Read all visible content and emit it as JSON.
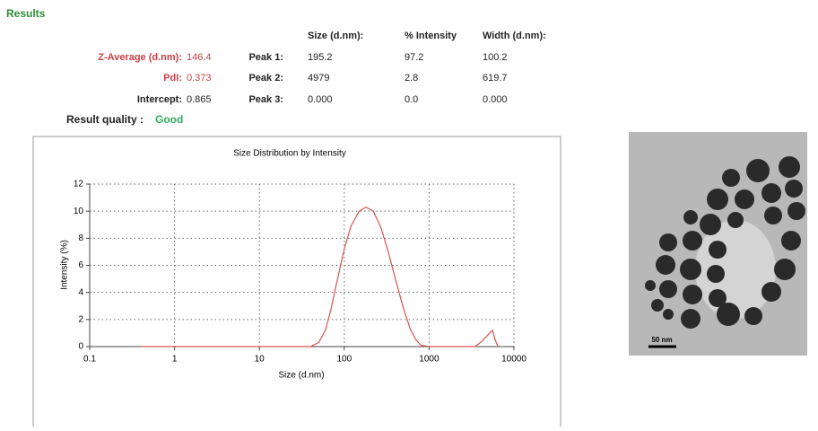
{
  "results": {
    "title": "Results",
    "summary": [
      {
        "label": "Z-Average (d.nm):",
        "value": "146.4"
      },
      {
        "label": "PdI:",
        "value": "0.373"
      },
      {
        "label": "Intercept:",
        "value": "0.865"
      }
    ],
    "quality": {
      "label": "Result quality :",
      "value": "Good"
    },
    "peaks": {
      "header": [
        "Size (d.nm):",
        "% Intensity",
        "Width (d.nm):"
      ],
      "rows": [
        [
          "Peak 1:",
          "195.2",
          "97.2",
          "100.2"
        ],
        [
          "Peak 2:",
          "4979",
          "2.8",
          "619.7"
        ],
        [
          "Peak 3:",
          "0.000",
          "0.0",
          "0.000"
        ]
      ]
    }
  },
  "chart_data": {
    "type": "line",
    "title": "Size Distribution by Intensity",
    "x_label": "Size (d.nm)",
    "y_label": "Intensity (%)",
    "x_scale": "log",
    "grid": true,
    "xlim": [
      0.1,
      10000
    ],
    "xticks": [
      0.1,
      1,
      10,
      100,
      1000,
      10000
    ],
    "ylim": [
      0,
      12
    ],
    "yticks": [
      0,
      2,
      4,
      6,
      8,
      10,
      12
    ],
    "x": [
      0.4,
      1,
      2,
      5,
      10,
      20,
      40,
      50,
      60,
      70,
      80,
      100,
      120,
      150,
      180,
      220,
      270,
      330,
      400,
      500,
      600,
      700,
      800,
      1000,
      2000,
      3500,
      4200,
      5000,
      5600,
      6000,
      6500
    ],
    "series": [
      {
        "color": "#d9534f",
        "values": [
          0,
          0,
          0,
          0,
          0,
          0,
          0,
          0.3,
          1.2,
          2.8,
          4.5,
          7.2,
          8.9,
          10.0,
          10.3,
          10.0,
          8.8,
          7.0,
          5.0,
          2.8,
          1.3,
          0.5,
          0.1,
          0,
          0,
          0,
          0.4,
          0.9,
          1.2,
          0.5,
          0
        ]
      }
    ]
  },
  "image": {
    "scale_label": "50 nm"
  }
}
